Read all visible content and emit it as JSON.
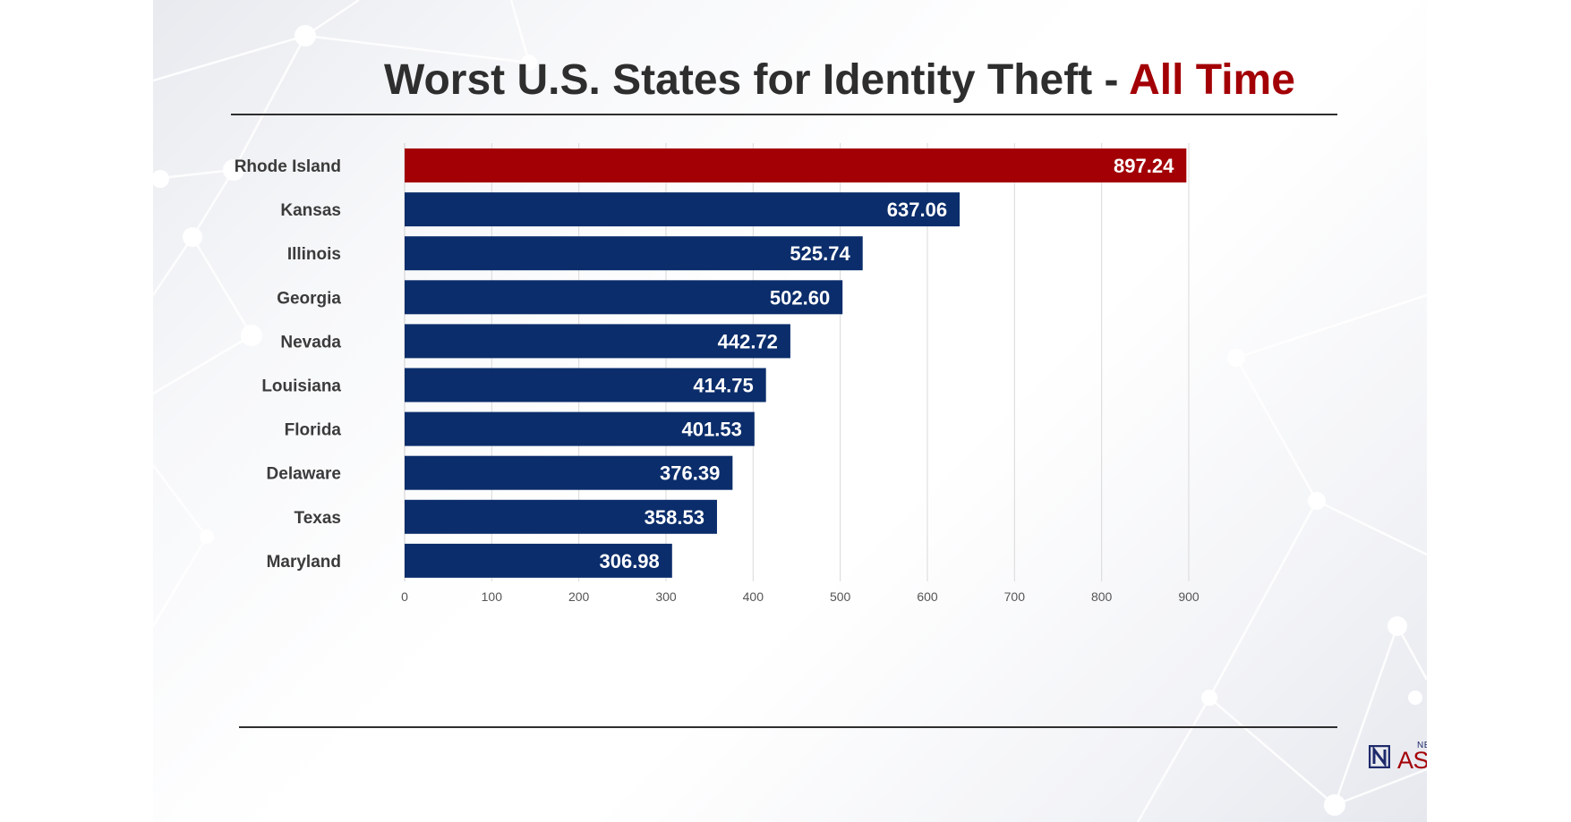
{
  "header": {
    "title_main": "Worst U.S. States for Identity Theft - ",
    "title_accent": "All Time"
  },
  "colors": {
    "highlight_bar": "#a30006",
    "bar": "#0b2d6b",
    "title_accent": "#a30006",
    "title": "#2e2e2e"
  },
  "logo": {
    "top_text": "NETWORK",
    "main_text": "ASSURED",
    "icon": "network-assured-logo-icon"
  },
  "chart_data": {
    "type": "bar",
    "orientation": "horizontal",
    "categories": [
      "Rhode Island",
      "Kansas",
      "Illinois",
      "Georgia",
      "Nevada",
      "Louisiana",
      "Florida",
      "Delaware",
      "Texas",
      "Maryland"
    ],
    "values": [
      897.24,
      637.06,
      525.74,
      502.6,
      442.72,
      414.75,
      401.53,
      376.39,
      358.53,
      306.98
    ],
    "value_labels": [
      "897.24",
      "637.06",
      "525.74",
      "502.60",
      "442.72",
      "414.75",
      "401.53",
      "376.39",
      "358.53",
      "306.98"
    ],
    "highlighted": [
      "Rhode Island"
    ],
    "xlim": [
      0,
      900
    ],
    "xticks": [
      0,
      100,
      200,
      300,
      400,
      500,
      600,
      700,
      800,
      900
    ],
    "xlabel": "",
    "ylabel": "",
    "grid": "vertical",
    "legend": "none"
  }
}
